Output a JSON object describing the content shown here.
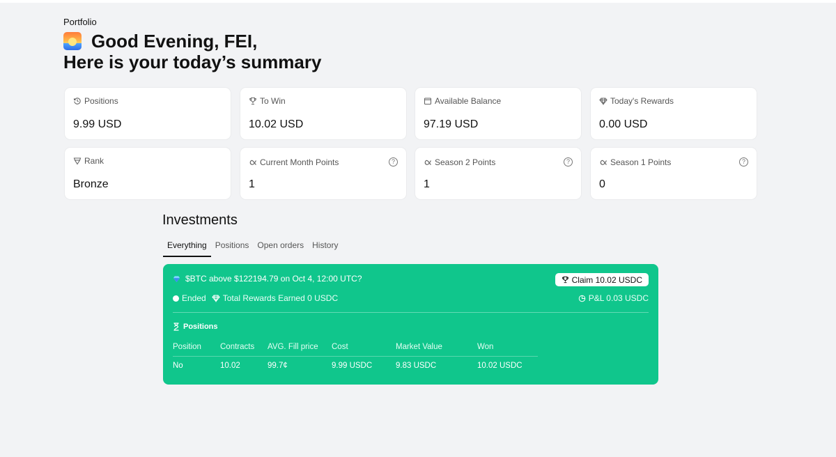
{
  "breadcrumb": "Portfolio",
  "greeting": {
    "line1": "Good Evening, FEI,",
    "line2": "Here is your today’s summary",
    "icon": "sunset-icon"
  },
  "stats_row1": [
    {
      "label": "Positions",
      "value": "9.99 USD",
      "icon": "history-icon"
    },
    {
      "label": "To Win",
      "value": "10.02 USD",
      "icon": "trophy-icon"
    },
    {
      "label": "Available Balance",
      "value": "97.19 USD",
      "icon": "wallet-icon"
    },
    {
      "label": "Today's Rewards",
      "value": "0.00 USD",
      "icon": "diamond-icon"
    }
  ],
  "stats_row2": [
    {
      "label": "Rank",
      "value": "Bronze",
      "icon": "rank-icon"
    },
    {
      "label": "Current Month Points",
      "value": "1",
      "icon": "alpha-icon"
    },
    {
      "label": "Season 2 Points",
      "value": "1",
      "icon": "alpha-icon"
    },
    {
      "label": "Season 1 Points",
      "value": "0",
      "icon": "alpha-icon"
    }
  ],
  "investments": {
    "title": "Investments",
    "tabs": [
      "Everything",
      "Positions",
      "Open orders",
      "History"
    ],
    "active_tab": "Everything",
    "card": {
      "title": "$BTC above $122194.79 on Oct 4, 12:00 UTC?",
      "claim_label": "Claim 10.02 USDC",
      "status": "Ended",
      "rewards": "Total Rewards Earned 0 USDC",
      "pnl": "P&L 0.03 USDC",
      "positions_heading": "Positions",
      "columns": [
        "Position",
        "Contracts",
        "AVG. Fill price",
        "Cost",
        "Market Value",
        "Won"
      ],
      "rows": [
        [
          "No",
          "10.02",
          "99.7¢",
          "9.99 USDC",
          "9.83 USDC",
          "10.02 USDC"
        ]
      ],
      "color": "#10c68c"
    }
  }
}
